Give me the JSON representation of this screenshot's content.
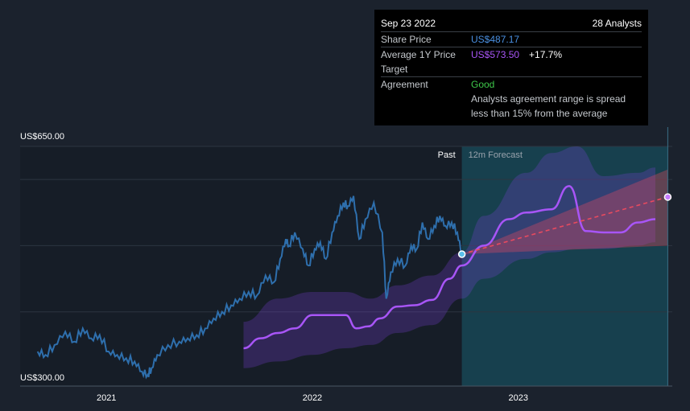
{
  "tooltip": {
    "date": "Sep 23 2022",
    "analysts": "28 Analysts",
    "share_price_label": "Share Price",
    "share_price_value": "US$487.17",
    "target_label": "Average 1Y Price Target",
    "target_value": "US$573.50",
    "target_change": "+17.7%",
    "agreement_label": "Agreement",
    "agreement_value": "Good",
    "agreement_note": "Analysts agreement range is spread less than 15% from the average"
  },
  "chart_data": {
    "type": "line",
    "region_labels": {
      "past": "Past",
      "forecast": "12m Forecast"
    },
    "y_axis": {
      "ylim": [
        300,
        650
      ],
      "tick_labels": [
        "US$650.00",
        "US$300.00"
      ],
      "gridlines": [
        650,
        600,
        500,
        400
      ]
    },
    "x_axis": {
      "tick_labels": [
        "2021",
        "2022",
        "2023"
      ],
      "xlim": [
        "2020-08-01",
        "2023-10-01"
      ]
    },
    "colors": {
      "share_price": "#2e6fad",
      "target": "#a855f7",
      "forecast_trend": "#e84a5f",
      "forecast_bg": "#17404e",
      "background": "#1b222d"
    },
    "share_price": {
      "x": [
        "2020-09-01",
        "2020-09-15",
        "2020-10-01",
        "2020-10-20",
        "2020-11-05",
        "2020-11-20",
        "2020-12-05",
        "2020-12-20",
        "2021-01-05",
        "2021-01-20",
        "2021-02-05",
        "2021-02-20",
        "2021-03-05",
        "2021-03-15",
        "2021-03-22",
        "2021-04-01",
        "2021-04-20",
        "2021-05-10",
        "2021-05-25",
        "2021-06-10",
        "2021-06-25",
        "2021-07-10",
        "2021-07-25",
        "2021-08-10",
        "2021-08-25",
        "2021-09-10",
        "2021-09-25",
        "2021-10-10",
        "2021-10-25",
        "2021-11-05",
        "2021-11-15",
        "2021-11-20",
        "2021-12-01",
        "2021-12-15",
        "2021-12-25",
        "2022-01-05",
        "2022-01-15",
        "2022-01-25",
        "2022-02-05",
        "2022-02-15",
        "2022-02-25",
        "2022-03-05",
        "2022-03-15",
        "2022-03-25",
        "2022-04-05",
        "2022-04-20",
        "2022-05-05",
        "2022-05-12",
        "2022-05-20",
        "2022-06-01",
        "2022-06-15",
        "2022-06-25",
        "2022-07-05",
        "2022-07-15",
        "2022-07-25",
        "2022-08-05",
        "2022-08-15",
        "2022-08-25",
        "2022-09-05",
        "2022-09-15",
        "2022-09-23"
      ],
      "y": [
        340,
        335,
        350,
        370,
        355,
        375,
        360,
        365,
        340,
        335,
        330,
        325,
        310,
        305,
        315,
        335,
        350,
        355,
        360,
        365,
        375,
        390,
        400,
        410,
        420,
        430,
        425,
        455,
        445,
        480,
        510,
        500,
        520,
        495,
        470,
        495,
        505,
        480,
        520,
        545,
        565,
        560,
        575,
        510,
        540,
        565,
        520,
        420,
        460,
        480,
        470,
        500,
        495,
        535,
        510,
        530,
        545,
        530,
        535,
        520,
        487.17
      ]
    },
    "target": {
      "x": [
        "2021-09-01",
        "2021-10-01",
        "2021-11-01",
        "2021-12-01",
        "2022-01-01",
        "2022-02-01",
        "2022-03-01",
        "2022-03-20",
        "2022-04-10",
        "2022-05-01",
        "2022-06-01",
        "2022-07-01",
        "2022-08-01",
        "2022-09-01",
        "2022-09-23",
        "2022-11-01",
        "2022-12-15",
        "2023-01-15",
        "2023-03-01",
        "2023-04-01",
        "2023-05-01",
        "2023-06-01",
        "2023-07-01",
        "2023-08-01",
        "2023-09-01"
      ],
      "y": [
        345,
        360,
        368,
        375,
        395,
        395,
        395,
        375,
        378,
        390,
        408,
        410,
        418,
        450,
        470,
        500,
        540,
        550,
        555,
        590,
        522,
        520,
        520,
        535,
        540
      ]
    },
    "target_high": {
      "x": [
        "2021-09-01",
        "2021-11-01",
        "2022-01-01",
        "2022-03-01",
        "2022-04-15",
        "2022-06-01",
        "2022-08-01",
        "2022-09-23",
        "2022-11-01",
        "2023-01-15",
        "2023-03-01",
        "2023-04-15",
        "2023-06-01",
        "2023-08-01",
        "2023-09-01"
      ],
      "y": [
        385,
        420,
        430,
        430,
        420,
        440,
        455,
        490,
        545,
        610,
        640,
        650,
        605,
        610,
        618
      ]
    },
    "target_low": {
      "x": [
        "2021-09-01",
        "2021-11-01",
        "2022-01-01",
        "2022-03-01",
        "2022-04-15",
        "2022-06-01",
        "2022-08-01",
        "2022-09-23",
        "2022-11-01",
        "2023-01-15",
        "2023-03-01",
        "2023-04-15",
        "2023-06-01",
        "2023-08-01",
        "2023-09-01"
      ],
      "y": [
        315,
        325,
        335,
        345,
        350,
        368,
        380,
        420,
        450,
        480,
        490,
        495,
        495,
        500,
        505
      ]
    },
    "forecast_trend": {
      "x": [
        "2022-09-23",
        "2023-09-23"
      ],
      "y": [
        487.17,
        573.5
      ],
      "band_high": 615,
      "band_low": 500
    },
    "forecast_start": "2022-09-23",
    "forecast_end": "2023-09-23"
  }
}
